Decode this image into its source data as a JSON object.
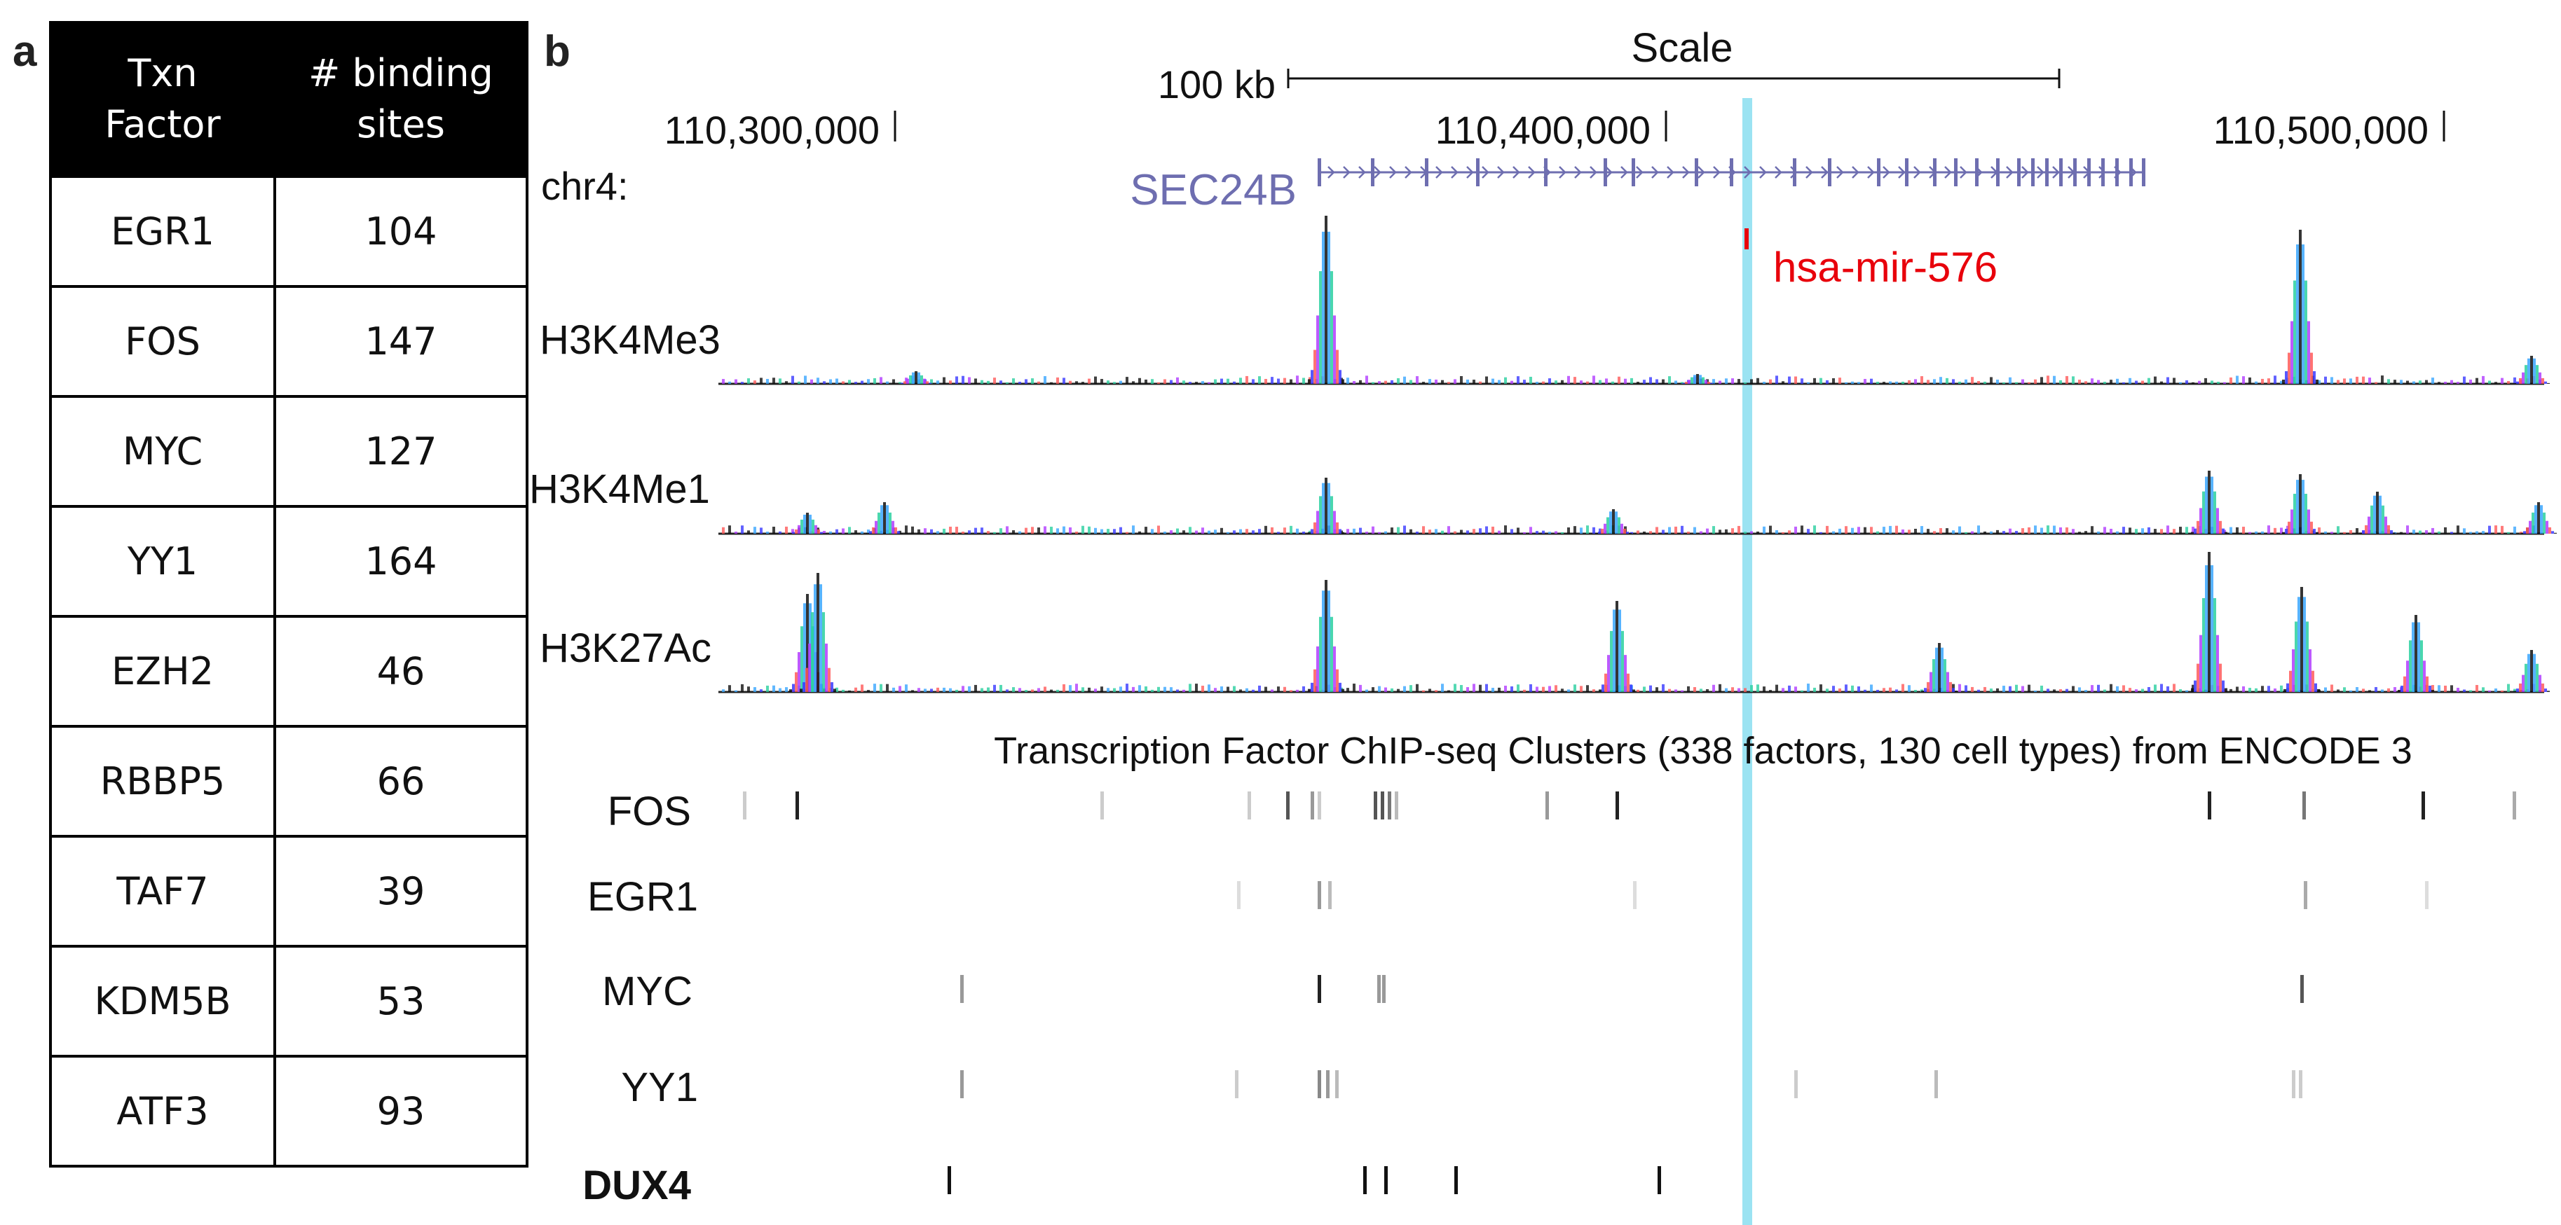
{
  "panel_a": {
    "letter": "a",
    "headers": [
      "Txn\nFactor",
      "# binding\nsites"
    ],
    "rows": [
      {
        "factor": "EGR1",
        "sites": "104"
      },
      {
        "factor": "FOS",
        "sites": "147"
      },
      {
        "factor": "MYC",
        "sites": "127"
      },
      {
        "factor": "YY1",
        "sites": "164"
      },
      {
        "factor": "EZH2",
        "sites": "46"
      },
      {
        "factor": "RBBP5",
        "sites": "66"
      },
      {
        "factor": "TAF7",
        "sites": "39"
      },
      {
        "factor": "KDM5B",
        "sites": "53"
      },
      {
        "factor": "ATF3",
        "sites": "93"
      }
    ]
  },
  "panel_b": {
    "letter": "b",
    "scale_title": "Scale",
    "scale_label": "100 kb",
    "chrom_label": "chr4:",
    "positions": [
      "110,300,000",
      "110,400,000",
      "110,500,000"
    ],
    "gene_label": "SEC24B",
    "mirna_label": "hsa-mir-576",
    "histone_tracks": [
      "H3K4Me3",
      "H3K4Me1",
      "H3K27Ac"
    ],
    "tf_title": "Transcription Factor ChIP-seq Clusters (338 factors, 130 cell types) from ENCODE 3",
    "tf_tracks": [
      "FOS",
      "EGR1",
      "MYC",
      "YY1",
      "DUX4"
    ],
    "colors": {
      "gene": "#6e6eb0",
      "mirna": "#e8000b",
      "highlight": "#9be3f2",
      "table_header_bg": "#000000",
      "table_header_text": "#ffffff"
    }
  }
}
